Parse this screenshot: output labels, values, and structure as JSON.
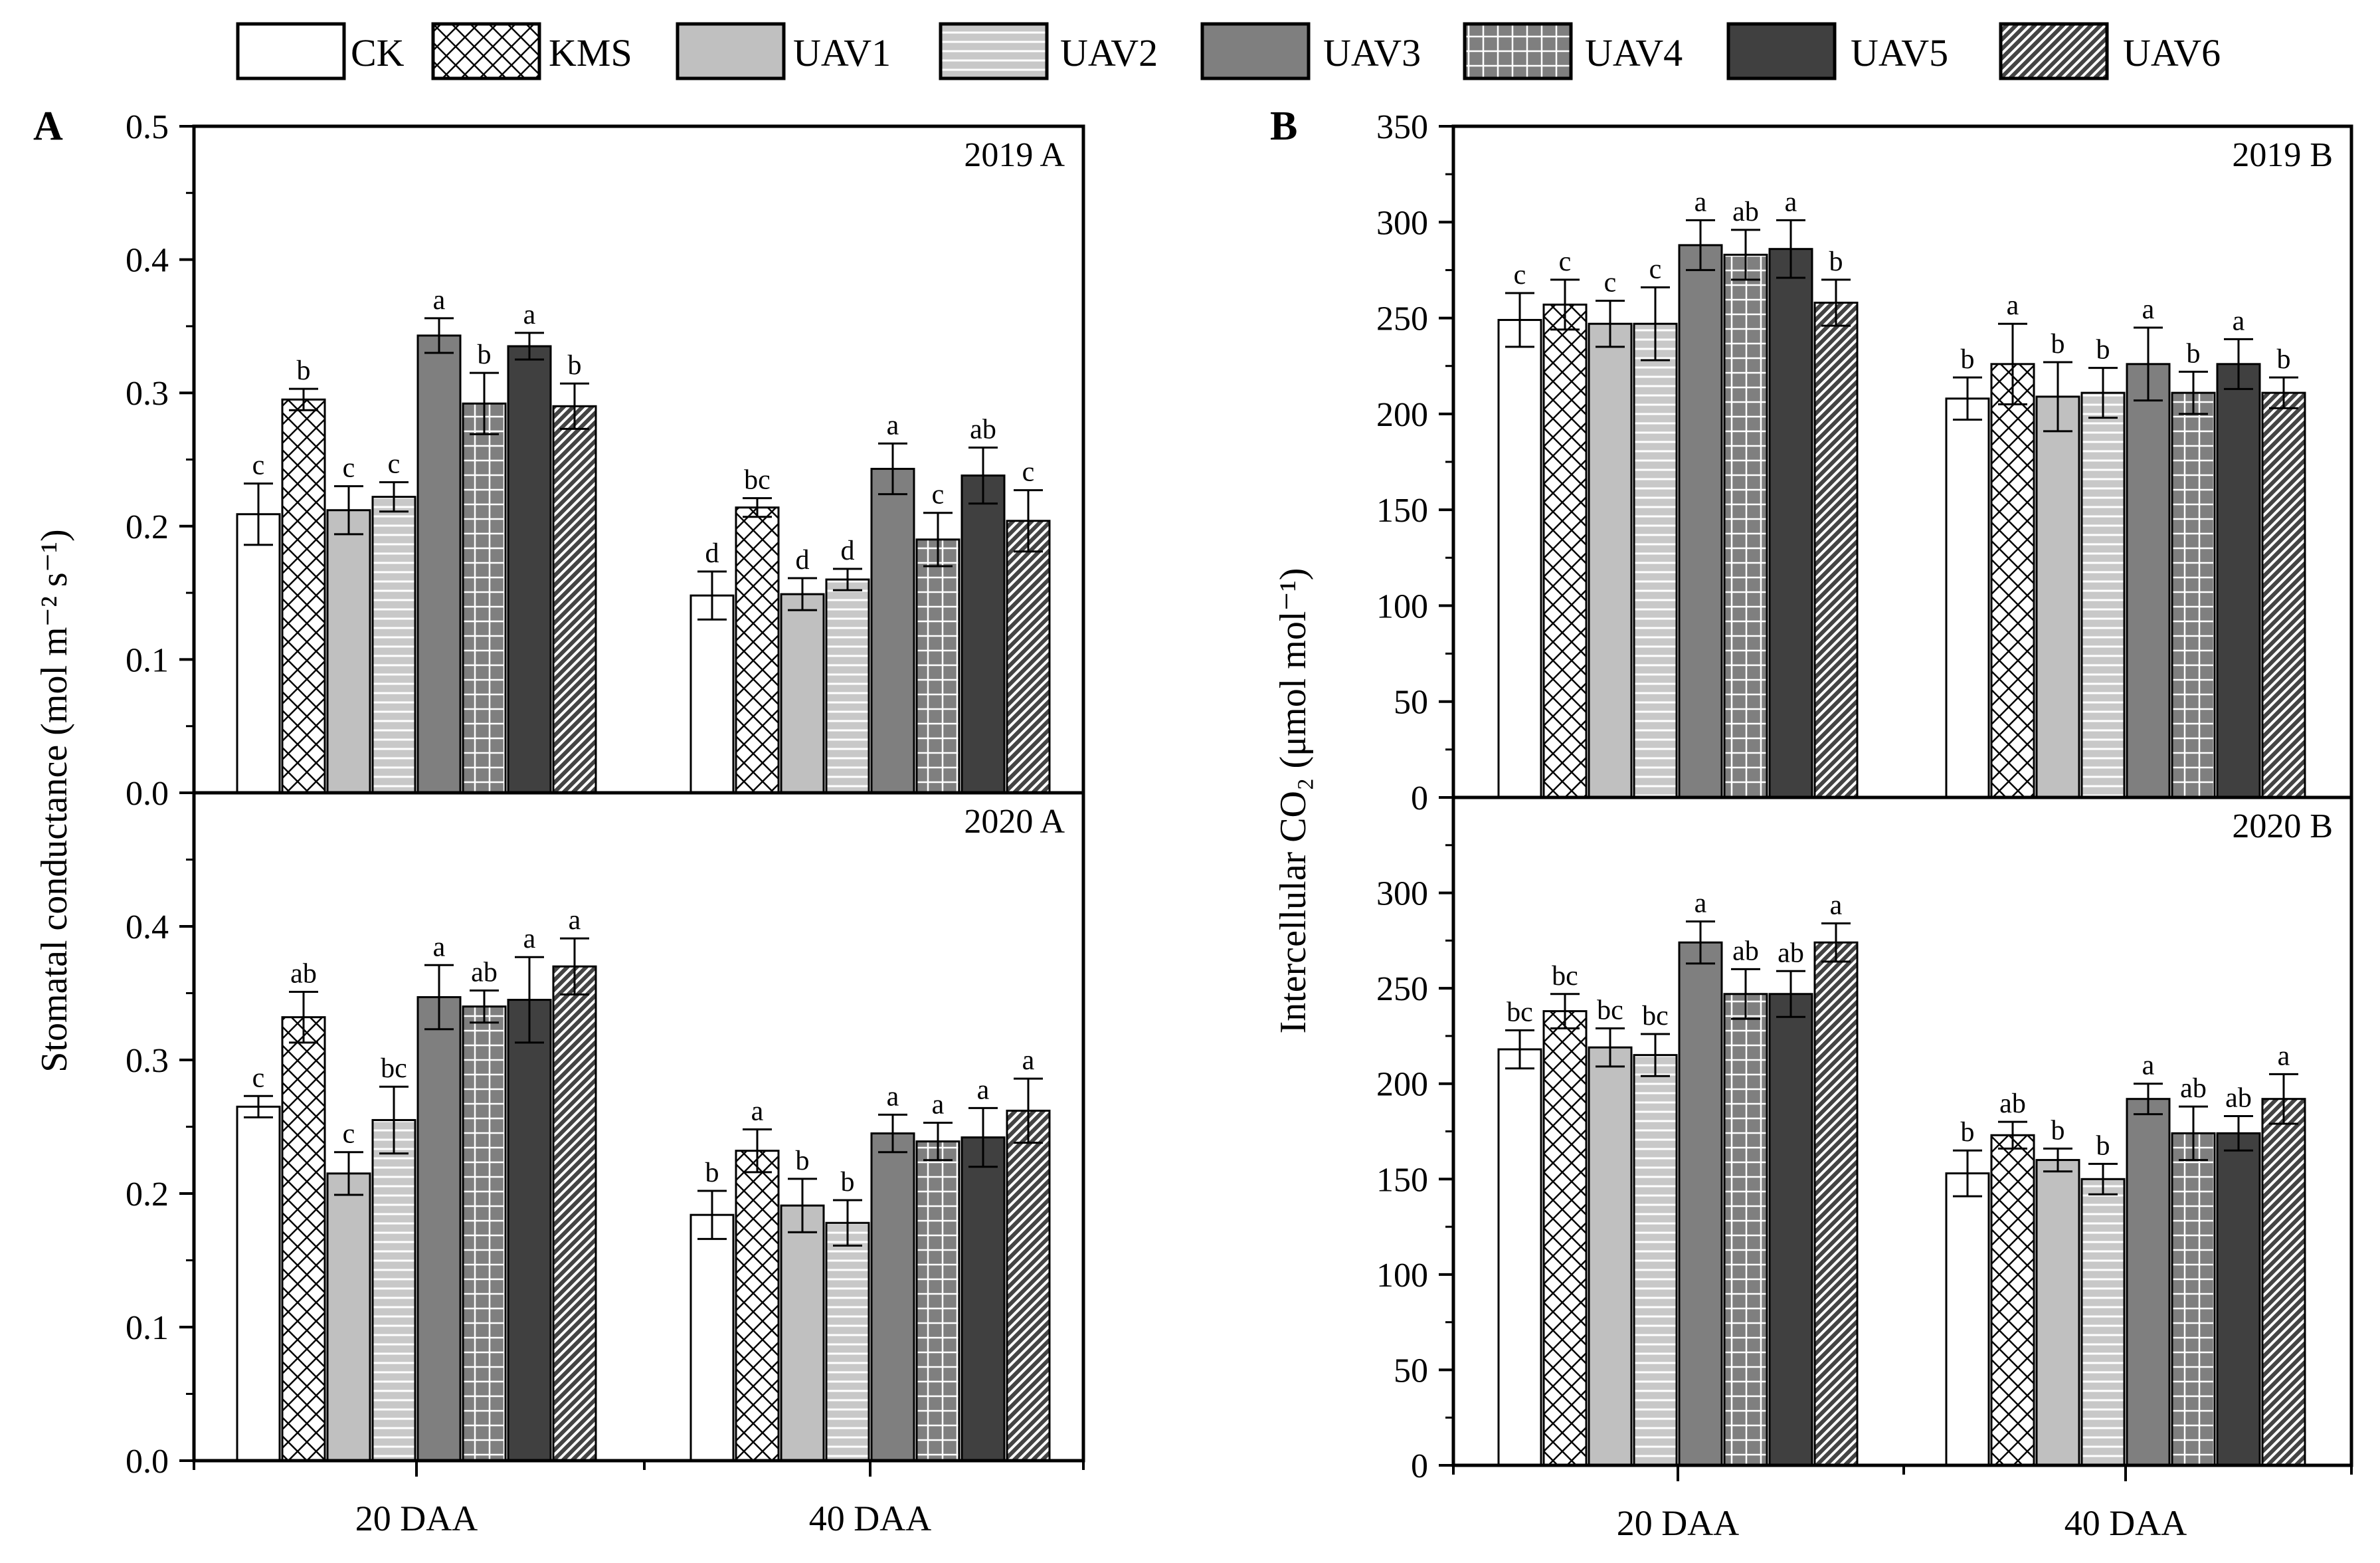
{
  "legend": {
    "items": [
      {
        "label": "CK",
        "fill": "#ffffff",
        "pattern": "none"
      },
      {
        "label": "KMS",
        "fill": "#ffffff",
        "pattern": "crosshatch"
      },
      {
        "label": "UAV1",
        "fill": "#c0c0c0",
        "pattern": "none"
      },
      {
        "label": "UAV2",
        "fill": "#c8c8c8",
        "pattern": "hlines"
      },
      {
        "label": "UAV3",
        "fill": "#7f7f7f",
        "pattern": "none"
      },
      {
        "label": "UAV4",
        "fill": "#7f7f7f",
        "pattern": "grid"
      },
      {
        "label": "UAV5",
        "fill": "#404040",
        "pattern": "none"
      },
      {
        "label": "UAV6",
        "fill": "#4f4f4f",
        "pattern": "diagonal"
      }
    ]
  },
  "chart_data": [
    {
      "type": "bar",
      "panel_letter": "A",
      "title": "2019 A",
      "ylabel": "Stomatal conductance (mol m⁻² s⁻¹)",
      "ylim": [
        0,
        0.5
      ],
      "yticks": [
        "0.0",
        "0.1",
        "0.2",
        "0.3",
        "0.4",
        "0.5"
      ],
      "categories": [
        "20 DAA",
        "40 DAA"
      ],
      "series": [
        {
          "name": "CK",
          "values": [
            0.209,
            0.148
          ],
          "errors": [
            0.023,
            0.018
          ],
          "letters": [
            "c",
            "d"
          ]
        },
        {
          "name": "KMS",
          "values": [
            0.295,
            0.214
          ],
          "errors": [
            0.008,
            0.007
          ],
          "letters": [
            "b",
            "bc"
          ]
        },
        {
          "name": "UAV1",
          "values": [
            0.212,
            0.149
          ],
          "errors": [
            0.018,
            0.012
          ],
          "letters": [
            "c",
            "d"
          ]
        },
        {
          "name": "UAV2",
          "values": [
            0.222,
            0.16
          ],
          "errors": [
            0.011,
            0.008
          ],
          "letters": [
            "c",
            "d"
          ]
        },
        {
          "name": "UAV3",
          "values": [
            0.343,
            0.243
          ],
          "errors": [
            0.013,
            0.019
          ],
          "letters": [
            "a",
            "a"
          ]
        },
        {
          "name": "UAV4",
          "values": [
            0.292,
            0.19
          ],
          "errors": [
            0.023,
            0.02
          ],
          "letters": [
            "b",
            "c"
          ]
        },
        {
          "name": "UAV5",
          "values": [
            0.335,
            0.238
          ],
          "errors": [
            0.01,
            0.021
          ],
          "letters": [
            "a",
            "ab"
          ]
        },
        {
          "name": "UAV6",
          "values": [
            0.29,
            0.204
          ],
          "errors": [
            0.017,
            0.023
          ],
          "letters": [
            "b",
            "c"
          ]
        }
      ]
    },
    {
      "type": "bar",
      "panel_letter": "",
      "title": "2020 A",
      "ylabel": "",
      "ylim": [
        0,
        0.5
      ],
      "yticks": [
        "0.0",
        "0.1",
        "0.2",
        "0.3",
        "0.4",
        ""
      ],
      "categories": [
        "20 DAA",
        "40 DAA"
      ],
      "series": [
        {
          "name": "CK",
          "values": [
            0.265,
            0.184
          ],
          "errors": [
            0.008,
            0.018
          ],
          "letters": [
            "c",
            "b"
          ]
        },
        {
          "name": "KMS",
          "values": [
            0.332,
            0.232
          ],
          "errors": [
            0.019,
            0.016
          ],
          "letters": [
            "ab",
            "a"
          ]
        },
        {
          "name": "UAV1",
          "values": [
            0.215,
            0.191
          ],
          "errors": [
            0.016,
            0.02
          ],
          "letters": [
            "c",
            "b"
          ]
        },
        {
          "name": "UAV2",
          "values": [
            0.255,
            0.178
          ],
          "errors": [
            0.025,
            0.017
          ],
          "letters": [
            "bc",
            "b"
          ]
        },
        {
          "name": "UAV3",
          "values": [
            0.347,
            0.245
          ],
          "errors": [
            0.024,
            0.014
          ],
          "letters": [
            "a",
            "a"
          ]
        },
        {
          "name": "UAV4",
          "values": [
            0.34,
            0.239
          ],
          "errors": [
            0.012,
            0.014
          ],
          "letters": [
            "ab",
            "a"
          ]
        },
        {
          "name": "UAV5",
          "values": [
            0.345,
            0.242
          ],
          "errors": [
            0.032,
            0.022
          ],
          "letters": [
            "a",
            "a"
          ]
        },
        {
          "name": "UAV6",
          "values": [
            0.37,
            0.262
          ],
          "errors": [
            0.021,
            0.024
          ],
          "letters": [
            "a",
            "a"
          ]
        }
      ]
    },
    {
      "type": "bar",
      "panel_letter": "B",
      "title": "2019 B",
      "ylabel": "Intercellular CO₂ (μmol mol⁻¹)",
      "ylim": [
        0,
        350
      ],
      "yticks": [
        "0",
        "50",
        "100",
        "150",
        "200",
        "250",
        "300",
        "350"
      ],
      "categories": [
        "20 DAA",
        "40 DAA"
      ],
      "series": [
        {
          "name": "CK",
          "values": [
            249,
            208
          ],
          "errors": [
            14,
            11
          ],
          "letters": [
            "c",
            "b"
          ]
        },
        {
          "name": "KMS",
          "values": [
            257,
            226
          ],
          "errors": [
            13,
            21
          ],
          "letters": [
            "c",
            "a"
          ]
        },
        {
          "name": "UAV1",
          "values": [
            247,
            209
          ],
          "errors": [
            12,
            18
          ],
          "letters": [
            "c",
            "b"
          ]
        },
        {
          "name": "UAV2",
          "values": [
            247,
            211
          ],
          "errors": [
            19,
            13
          ],
          "letters": [
            "c",
            "b"
          ]
        },
        {
          "name": "UAV3",
          "values": [
            288,
            226
          ],
          "errors": [
            13,
            19
          ],
          "letters": [
            "a",
            "a"
          ]
        },
        {
          "name": "UAV4",
          "values": [
            283,
            211
          ],
          "errors": [
            13,
            11
          ],
          "letters": [
            "ab",
            "b"
          ]
        },
        {
          "name": "UAV5",
          "values": [
            286,
            226
          ],
          "errors": [
            15,
            13
          ],
          "letters": [
            "a",
            "a"
          ]
        },
        {
          "name": "UAV6",
          "values": [
            258,
            211
          ],
          "errors": [
            12,
            8
          ],
          "letters": [
            "b",
            "b"
          ]
        }
      ]
    },
    {
      "type": "bar",
      "panel_letter": "",
      "title": "2020 B",
      "ylabel": "",
      "ylim": [
        0,
        350
      ],
      "yticks": [
        "0",
        "50",
        "100",
        "150",
        "200",
        "250",
        "300",
        ""
      ],
      "categories": [
        "20 DAA",
        "40 DAA"
      ],
      "series": [
        {
          "name": "CK",
          "values": [
            218,
            153
          ],
          "errors": [
            10,
            12
          ],
          "letters": [
            "bc",
            "b"
          ]
        },
        {
          "name": "KMS",
          "values": [
            238,
            173
          ],
          "errors": [
            9,
            7
          ],
          "letters": [
            "bc",
            "ab"
          ]
        },
        {
          "name": "UAV1",
          "values": [
            219,
            160
          ],
          "errors": [
            10,
            6
          ],
          "letters": [
            "bc",
            "b"
          ]
        },
        {
          "name": "UAV2",
          "values": [
            215,
            150
          ],
          "errors": [
            11,
            8
          ],
          "letters": [
            "bc",
            "b"
          ]
        },
        {
          "name": "UAV3",
          "values": [
            274,
            192
          ],
          "errors": [
            11,
            8
          ],
          "letters": [
            "a",
            "a"
          ]
        },
        {
          "name": "UAV4",
          "values": [
            247,
            174
          ],
          "errors": [
            13,
            14
          ],
          "letters": [
            "ab",
            "ab"
          ]
        },
        {
          "name": "UAV5",
          "values": [
            247,
            174
          ],
          "errors": [
            12,
            9
          ],
          "letters": [
            "ab",
            "ab"
          ]
        },
        {
          "name": "UAV6",
          "values": [
            274,
            192
          ],
          "errors": [
            10,
            13
          ],
          "letters": [
            "a",
            "a"
          ]
        }
      ]
    }
  ]
}
